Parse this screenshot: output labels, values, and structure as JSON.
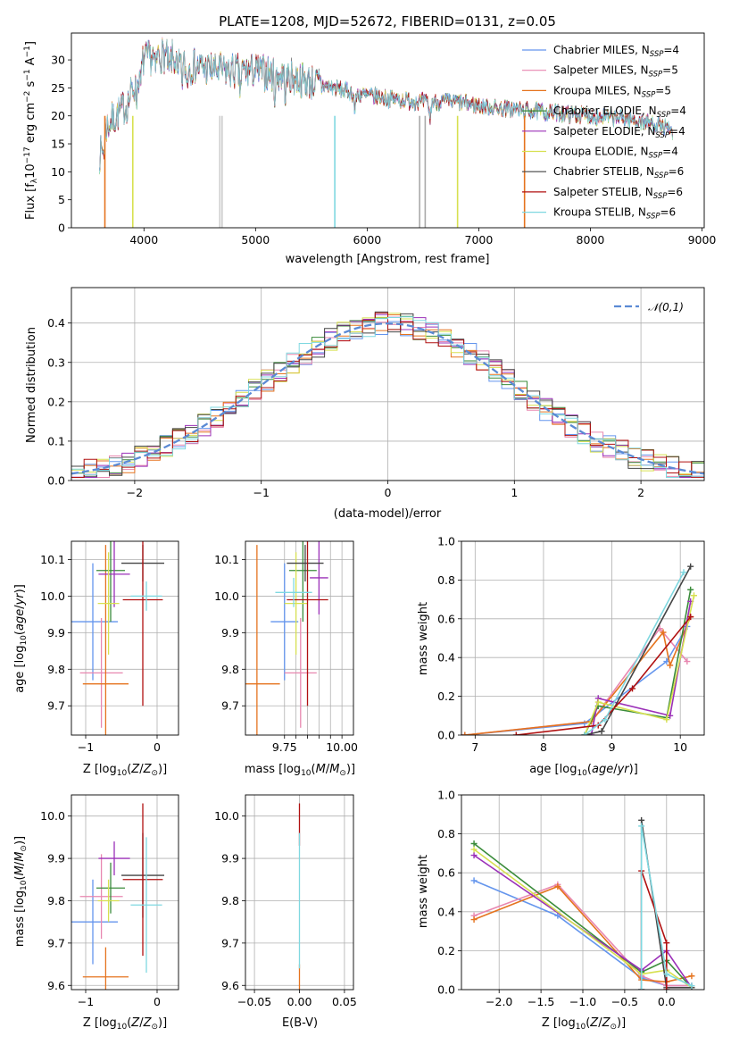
{
  "chart_data": [
    {
      "id": "spectrum",
      "type": "line",
      "title": "PLATE=1208, MJD=52672, FIBERID=0131, z=0.05",
      "xlabel": "wavelength [Angstrom, rest frame]",
      "ylabel": "Flux [f_λ 10^-17 erg cm^-2 s^-1 A^-1]",
      "xlim": [
        3350,
        9020
      ],
      "ylim": [
        0,
        34.8
      ],
      "xticks": [
        4000,
        5000,
        6000,
        7000,
        8000,
        9000
      ],
      "yticks": [
        0,
        5,
        10,
        15,
        20,
        25,
        30
      ],
      "grid": false,
      "legend_position": "top-right",
      "continuum_anchors": {
        "x": [
          3600,
          3700,
          3850,
          4000,
          4150,
          4400,
          4700,
          5000,
          5300,
          5600,
          5900,
          6200,
          6500,
          6800,
          7100,
          7400,
          7700,
          8000,
          8300,
          8600,
          8750
        ],
        "y": [
          16,
          19,
          22,
          30,
          31,
          29,
          28,
          28,
          27,
          25.5,
          24,
          23,
          22.5,
          22.5,
          21.5,
          21,
          20.5,
          20,
          19.5,
          18.5,
          17
        ]
      },
      "series": [
        {
          "name": "Chabrier MILES, N_SSP=4",
          "color": "#6495ed"
        },
        {
          "name": "Salpeter MILES, N_SSP=5",
          "color": "#e887b0"
        },
        {
          "name": "Kroupa MILES, N_SSP=5",
          "color": "#e5731e"
        },
        {
          "name": "Chabrier ELODIE, N_SSP=4",
          "color": "#3b8c3b"
        },
        {
          "name": "Salpeter ELODIE, N_SSP=4",
          "color": "#9b30b8"
        },
        {
          "name": "Kroupa ELODIE, N_SSP=4",
          "color": "#d7e050"
        },
        {
          "name": "Chabrier STELIB, N_SSP=6",
          "color": "#444444"
        },
        {
          "name": "Salpeter STELIB, N_SSP=6",
          "color": "#b01010"
        },
        {
          "name": "Kroupa STELIB, N_SSP=6",
          "color": "#7fd8e0"
        }
      ]
    },
    {
      "id": "residuals",
      "type": "area",
      "xlabel": "(data-model)/error",
      "ylabel": "Normed distribution",
      "xlim": [
        -2.5,
        2.5
      ],
      "ylim": [
        0,
        0.49
      ],
      "xticks": [
        -2,
        -1,
        0,
        1,
        2
      ],
      "yticks": [
        0.0,
        0.1,
        0.2,
        0.3,
        0.4
      ],
      "grid": true,
      "legend_position": "top-right",
      "reference": {
        "name": "𝒩(0,1)",
        "style": "dashed",
        "color": "#5b8ad4"
      }
    },
    {
      "id": "age-vs-Z",
      "type": "scatter",
      "xlabel": "Z [log10(Z/Z⊙)]",
      "ylabel": "age [log10(age/yr)]",
      "xlim": [
        -1.2,
        0.3
      ],
      "ylim": [
        9.62,
        10.15
      ],
      "xticks": [
        -1,
        0
      ],
      "yticks": [
        9.7,
        9.8,
        9.9,
        10.0,
        10.1
      ],
      "grid": true,
      "points": [
        {
          "color": "#6495ed",
          "x": -0.9,
          "xerr": 0.35,
          "y": 9.93,
          "yerr": 0.16
        },
        {
          "color": "#e887b0",
          "x": -0.78,
          "xerr": 0.3,
          "y": 9.79,
          "yerr": 0.15
        },
        {
          "color": "#e5731e",
          "x": -0.72,
          "xerr": 0.32,
          "y": 9.76,
          "yerr": 0.38
        },
        {
          "color": "#3b8c3b",
          "x": -0.65,
          "xerr": 0.2,
          "y": 10.07,
          "yerr": 0.14
        },
        {
          "color": "#9b30b8",
          "x": -0.6,
          "xerr": 0.22,
          "y": 10.06,
          "yerr": 0.09
        },
        {
          "color": "#d7e050",
          "x": -0.68,
          "xerr": 0.15,
          "y": 9.98,
          "yerr": 0.14
        },
        {
          "color": "#444444",
          "x": -0.2,
          "xerr": 0.3,
          "y": 10.09,
          "yerr": 0.05
        },
        {
          "color": "#b01010",
          "x": -0.2,
          "xerr": 0.28,
          "y": 9.99,
          "yerr": 0.29
        },
        {
          "color": "#7fd8e0",
          "x": -0.15,
          "xerr": 0.22,
          "y": 10.0,
          "yerr": 0.04
        }
      ]
    },
    {
      "id": "age-vs-mass",
      "type": "scatter",
      "xlabel": "mass [log10(M/M⊙)]",
      "ylabel": "",
      "xlim": [
        9.58,
        10.05
      ],
      "ylim": [
        9.62,
        10.15
      ],
      "xticks": [
        9.75,
        9.8,
        9.85,
        9.9,
        9.95,
        10.0
      ],
      "xticklabels": [
        "9.75",
        "",
        "",
        "",
        "",
        "10.00"
      ],
      "yticks": [
        9.7,
        9.8,
        9.9,
        10.0,
        10.1
      ],
      "grid": true,
      "points": [
        {
          "color": "#6495ed",
          "x": 9.75,
          "xerr": 0.06,
          "y": 9.93,
          "yerr": 0.16
        },
        {
          "color": "#e887b0",
          "x": 9.82,
          "xerr": 0.07,
          "y": 9.79,
          "yerr": 0.15
        },
        {
          "color": "#e5731e",
          "x": 9.63,
          "xerr": 0.1,
          "y": 9.76,
          "yerr": 0.38
        },
        {
          "color": "#3b8c3b",
          "x": 9.83,
          "xerr": 0.06,
          "y": 10.07,
          "yerr": 0.14
        },
        {
          "color": "#9b30b8",
          "x": 9.9,
          "xerr": 0.04,
          "y": 10.05,
          "yerr": 0.1
        },
        {
          "color": "#d7e050",
          "x": 9.8,
          "xerr": 0.05,
          "y": 9.98,
          "yerr": 0.14
        },
        {
          "color": "#444444",
          "x": 9.84,
          "xerr": 0.08,
          "y": 10.09,
          "yerr": 0.05
        },
        {
          "color": "#b01010",
          "x": 9.85,
          "xerr": 0.09,
          "y": 9.99,
          "yerr": 0.29
        },
        {
          "color": "#7fd8e0",
          "x": 9.79,
          "xerr": 0.08,
          "y": 10.01,
          "yerr": 0.04
        }
      ]
    },
    {
      "id": "weight-vs-age",
      "type": "line",
      "xlabel": "age [log10(age/yr)]",
      "ylabel": "mass weight",
      "xlim": [
        6.8,
        10.35
      ],
      "ylim": [
        0,
        1.0
      ],
      "xticks": [
        7,
        8,
        9,
        10
      ],
      "yticks": [
        0.0,
        0.2,
        0.4,
        0.6,
        0.8,
        1.0
      ],
      "grid": true,
      "series": [
        {
          "color": "#6495ed",
          "x": [
            6.85,
            8.6,
            9.8,
            10.1
          ],
          "y": [
            0.0,
            0.06,
            0.38,
            0.56
          ]
        },
        {
          "color": "#e887b0",
          "x": [
            6.85,
            8.7,
            9.7,
            10.1
          ],
          "y": [
            0.0,
            0.07,
            0.55,
            0.38
          ]
        },
        {
          "color": "#e5731e",
          "x": [
            6.85,
            8.7,
            9.75,
            9.85,
            10.15
          ],
          "y": [
            0.0,
            0.07,
            0.53,
            0.36,
            0.61
          ]
        },
        {
          "color": "#3b8c3b",
          "x": [
            8.6,
            8.8,
            9.8,
            10.15
          ],
          "y": [
            0.0,
            0.15,
            0.09,
            0.75
          ]
        },
        {
          "color": "#9b30b8",
          "x": [
            8.7,
            8.8,
            9.85,
            10.15
          ],
          "y": [
            0.0,
            0.19,
            0.1,
            0.69
          ]
        },
        {
          "color": "#d7e050",
          "x": [
            8.6,
            8.8,
            9.8,
            10.2
          ],
          "y": [
            0.0,
            0.17,
            0.08,
            0.72
          ]
        },
        {
          "color": "#444444",
          "x": [
            8.6,
            8.85,
            10.15
          ],
          "y": [
            0.0,
            0.02,
            0.87
          ]
        },
        {
          "color": "#b01010",
          "x": [
            7.6,
            8.8,
            9.3,
            10.15
          ],
          "y": [
            0.0,
            0.05,
            0.24,
            0.61
          ]
        },
        {
          "color": "#7fd8e0",
          "x": [
            8.6,
            8.9,
            10.05
          ],
          "y": [
            0.0,
            0.08,
            0.84
          ]
        }
      ]
    },
    {
      "id": "mass-vs-Z",
      "type": "scatter",
      "xlabel": "Z [log10(Z/Z⊙)]",
      "ylabel": "mass [log10(M/M⊙)]",
      "xlim": [
        -1.2,
        0.3
      ],
      "ylim": [
        9.59,
        10.05
      ],
      "xticks": [
        -1,
        0
      ],
      "yticks": [
        9.6,
        9.7,
        9.8,
        9.9,
        10.0
      ],
      "grid": true,
      "points": [
        {
          "color": "#6495ed",
          "x": -0.9,
          "xerr": 0.35,
          "y": 9.75,
          "yerr": 0.1
        },
        {
          "color": "#e887b0",
          "x": -0.78,
          "xerr": 0.3,
          "y": 9.81,
          "yerr": 0.1
        },
        {
          "color": "#e5731e",
          "x": -0.72,
          "xerr": 0.32,
          "y": 9.62,
          "yerr": 0.07
        },
        {
          "color": "#3b8c3b",
          "x": -0.65,
          "xerr": 0.2,
          "y": 9.83,
          "yerr": 0.06
        },
        {
          "color": "#9b30b8",
          "x": -0.6,
          "xerr": 0.22,
          "y": 9.9,
          "yerr": 0.04
        },
        {
          "color": "#d7e050",
          "x": -0.68,
          "xerr": 0.15,
          "y": 9.8,
          "yerr": 0.05
        },
        {
          "color": "#444444",
          "x": -0.2,
          "xerr": 0.3,
          "y": 9.86,
          "yerr": 0.1
        },
        {
          "color": "#b01010",
          "x": -0.2,
          "xerr": 0.28,
          "y": 9.85,
          "yerr": 0.18
        },
        {
          "color": "#7fd8e0",
          "x": -0.15,
          "xerr": 0.22,
          "y": 9.79,
          "yerr": 0.16
        }
      ]
    },
    {
      "id": "mass-vs-ebv",
      "type": "scatter",
      "xlabel": "E(B-V)",
      "ylabel": "",
      "xlim": [
        -0.06,
        0.06
      ],
      "ylim": [
        9.59,
        10.05
      ],
      "xticks": [
        -0.05,
        0.0,
        0.05
      ],
      "xticklabels": [
        "−0.05",
        "0.00",
        "0.05"
      ],
      "yticks": [
        9.6,
        9.7,
        9.8,
        9.9,
        10.0
      ],
      "grid": true,
      "points": [
        {
          "color": "#e5731e",
          "x": 0.0,
          "xerr": 0,
          "y": 9.62,
          "yerr": 0.03
        },
        {
          "color": "#b01010",
          "x": 0.0,
          "xerr": 0,
          "y": 9.98,
          "yerr": 0.05
        },
        {
          "color": "#7fd8e0",
          "x": 0.0,
          "xerr": 0,
          "y": 9.8,
          "yerr": 0.16
        }
      ]
    },
    {
      "id": "weight-vs-Z",
      "type": "line",
      "xlabel": "Z [log10(Z/Z⊙)]",
      "ylabel": "mass weight",
      "xlim": [
        -2.45,
        0.45
      ],
      "ylim": [
        0,
        1.0
      ],
      "xticks": [
        -2.0,
        -1.5,
        -1.0,
        -0.5,
        0.0
      ],
      "xticklabels": [
        "−2.0",
        "−1.5",
        "−1.0",
        "−0.5",
        "0.0"
      ],
      "yticks": [
        0.0,
        0.2,
        0.4,
        0.6,
        0.8,
        1.0
      ],
      "grid": true,
      "series": [
        {
          "color": "#6495ed",
          "x": [
            -2.3,
            -1.3,
            -0.3,
            0.0,
            0.3
          ],
          "y": [
            0.56,
            0.38,
            0.06,
            0.02,
            0.02
          ]
        },
        {
          "color": "#e887b0",
          "x": [
            -2.3,
            -1.3,
            -0.3,
            0.0,
            0.3
          ],
          "y": [
            0.38,
            0.54,
            0.07,
            0.02,
            0.02
          ]
        },
        {
          "color": "#e5731e",
          "x": [
            -2.3,
            -1.3,
            -0.3,
            0.0,
            0.3
          ],
          "y": [
            0.36,
            0.53,
            0.05,
            0.04,
            0.07
          ]
        },
        {
          "color": "#3b8c3b",
          "x": [
            -2.3,
            -0.3,
            0.0,
            0.3
          ],
          "y": [
            0.75,
            0.09,
            0.15,
            0.01
          ]
        },
        {
          "color": "#9b30b8",
          "x": [
            -2.3,
            -0.3,
            0.0,
            0.3
          ],
          "y": [
            0.69,
            0.1,
            0.2,
            0.01
          ]
        },
        {
          "color": "#d7e050",
          "x": [
            -2.3,
            -0.3,
            0.0,
            0.3
          ],
          "y": [
            0.72,
            0.08,
            0.1,
            0.01
          ]
        },
        {
          "color": "#444444",
          "x": [
            -0.3,
            -0.3,
            0.0,
            0.3
          ],
          "y": [
            0.0,
            0.87,
            0.01,
            0.01
          ]
        },
        {
          "color": "#b01010",
          "x": [
            -0.3,
            -0.3,
            0.0,
            0.0
          ],
          "y": [
            0.0,
            0.61,
            0.24,
            0.0
          ]
        },
        {
          "color": "#7fd8e0",
          "x": [
            -0.3,
            -0.3,
            0.0,
            0.3
          ],
          "y": [
            0.0,
            0.84,
            0.08,
            0.02
          ]
        }
      ]
    }
  ]
}
